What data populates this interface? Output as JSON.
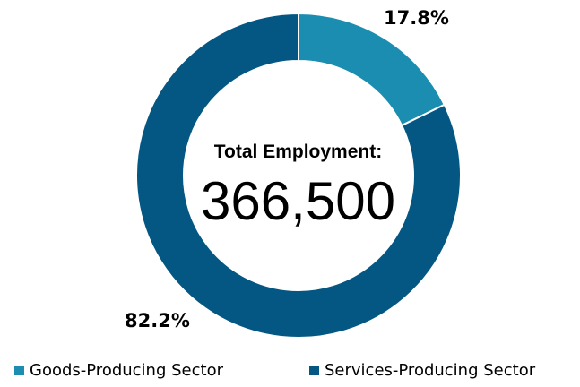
{
  "chart_data": {
    "type": "pie",
    "variant": "donut",
    "center_title": "Total Employment:",
    "center_value": "366,500",
    "slices": [
      {
        "name": "Goods-Producing Sector",
        "value": 17.8,
        "label": "17.8%",
        "color": "#1b8db1"
      },
      {
        "name": "Services-Producing Sector",
        "value": 82.2,
        "label": "82.2%",
        "color": "#035782"
      }
    ],
    "legend_position": "bottom",
    "start_angle": "12 o'clock",
    "direction": "clockwise"
  }
}
